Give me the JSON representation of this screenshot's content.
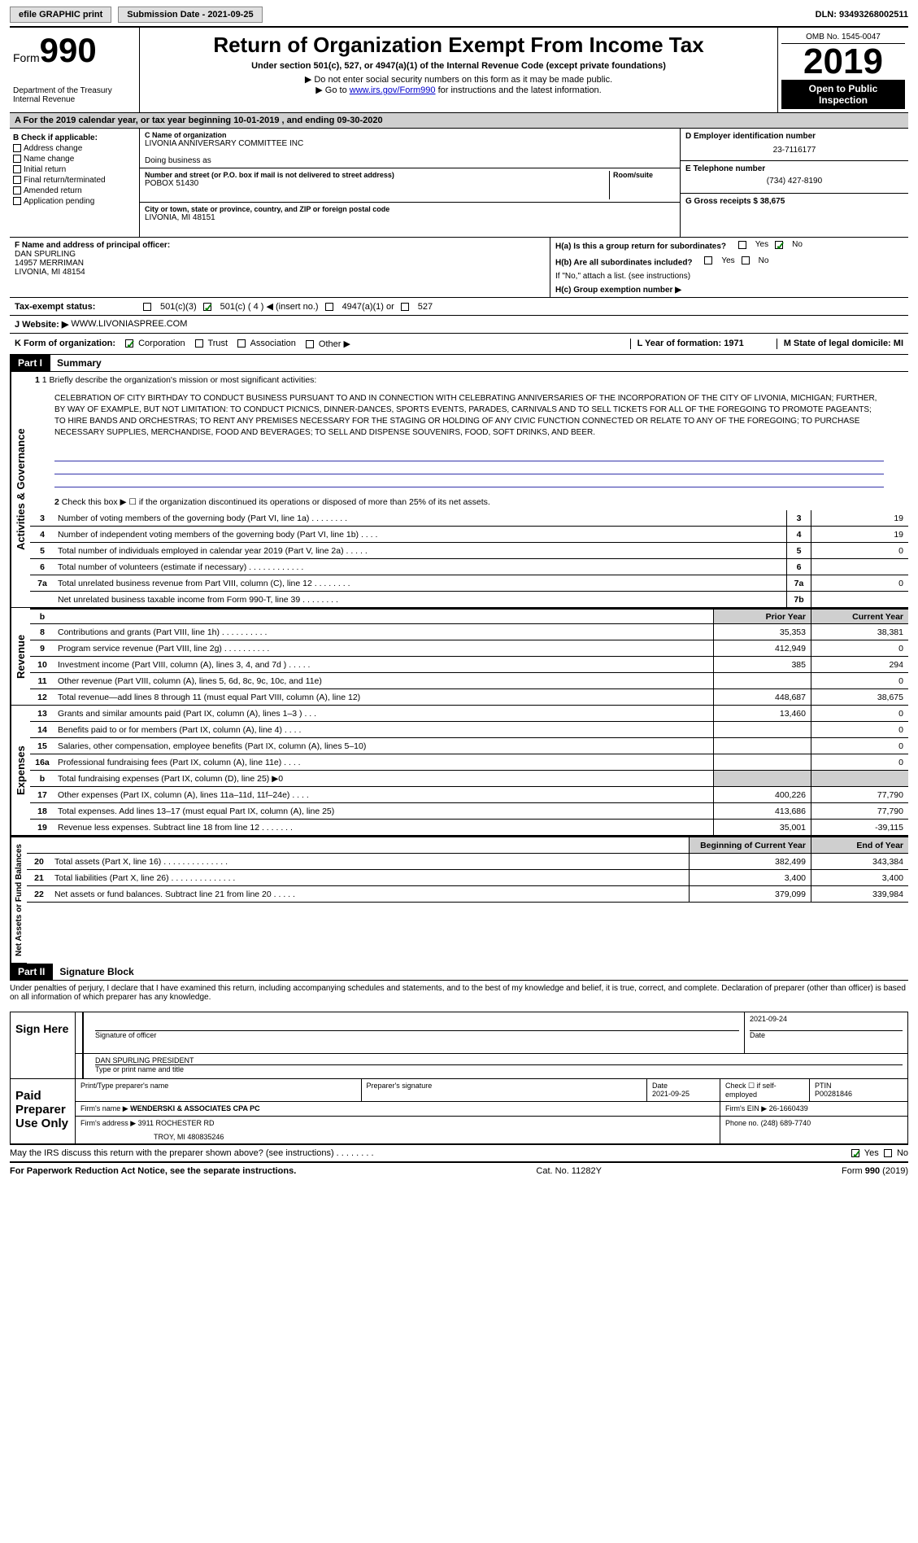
{
  "header": {
    "efile": "efile GRAPHIC print",
    "submission_label": "Submission Date - 2021-09-25",
    "dln": "DLN: 93493268002511"
  },
  "title_block": {
    "form_label": "Form",
    "form_number": "990",
    "main_title": "Return of Organization Exempt From Income Tax",
    "subtitle": "Under section 501(c), 527, or 4947(a)(1) of the Internal Revenue Code (except private foundations)",
    "instruction1": "▶ Do not enter social security numbers on this form as it may be made public.",
    "instruction2_prefix": "▶ Go to ",
    "instruction2_link": "www.irs.gov/Form990",
    "instruction2_suffix": " for instructions and the latest information.",
    "omb": "OMB No. 1545-0047",
    "year": "2019",
    "open_public": "Open to Public Inspection",
    "dept1": "Department of the Treasury",
    "dept2": "Internal Revenue"
  },
  "period": "A For the 2019 calendar year, or tax year beginning 10-01-2019    , and ending 09-30-2020",
  "section_b": {
    "label": "B Check if applicable:",
    "checks": [
      "Address change",
      "Name change",
      "Initial return",
      "Final return/terminated",
      "Amended return",
      "Application pending"
    ],
    "c_label": "C Name of organization",
    "org_name": "LIVONIA ANNIVERSARY COMMITTEE INC",
    "dba_label": "Doing business as",
    "street_label": "Number and street (or P.O. box if mail is not delivered to street address)",
    "room_label": "Room/suite",
    "street": "POBOX 51430",
    "city_label": "City or town, state or province, country, and ZIP or foreign postal code",
    "city": "LIVONIA, MI  48151",
    "d_label": "D Employer identification number",
    "ein": "23-7116177",
    "e_label": "E Telephone number",
    "phone": "(734) 427-8190",
    "g_label": "G Gross receipts $ 38,675"
  },
  "section_f": {
    "f_label": "F  Name and address of principal officer:",
    "name": "DAN SPURLING",
    "addr1": "14957 MERRIMAN",
    "addr2": "LIVONIA, MI  48154",
    "h_a": "H(a)  Is this a group return for subordinates?",
    "h_b": "H(b)  Are all subordinates included?",
    "h_note": "If \"No,\" attach a list. (see instructions)",
    "h_c": "H(c)  Group exemption number ▶",
    "yes": "Yes",
    "no": "No"
  },
  "tax_exempt": {
    "label": "Tax-exempt status:",
    "opt1": "501(c)(3)",
    "opt2": "501(c) ( 4 ) ◀ (insert no.)",
    "opt3": "4947(a)(1) or",
    "opt4": "527"
  },
  "website": {
    "label": "J   Website: ▶",
    "url": "WWW.LIVONIASPREE.COM"
  },
  "form_org": {
    "k_label": "K Form of organization:",
    "corp": "Corporation",
    "trust": "Trust",
    "assoc": "Association",
    "other": "Other ▶",
    "l_label": "L Year of formation: 1971",
    "m_label": "M State of legal domicile: MI"
  },
  "part1": {
    "label": "Part I",
    "title": "Summary",
    "line1_label": "1  Briefly describe the organization's mission or most significant activities:",
    "mission": "CELEBRATION OF CITY BIRTHDAY TO CONDUCT BUSINESS PURSUANT TO AND IN CONNECTION WITH CELEBRATING ANNIVERSARIES OF THE INCORPORATION OF THE CITY OF LIVONIA, MICHIGAN; FURTHER, BY WAY OF EXAMPLE, BUT NOT LIMITATION: TO CONDUCT PICNICS, DINNER-DANCES, SPORTS EVENTS, PARADES, CARNIVALS AND TO SELL TICKETS FOR ALL OF THE FOREGOING TO PROMOTE PAGEANTS; TO HIRE BANDS AND ORCHESTRAS; TO RENT ANY PREMISES NECESSARY FOR THE STAGING OR HOLDING OF ANY CIVIC FUNCTION CONNECTED OR RELATE TO ANY OF THE FOREGOING; TO PURCHASE NECESSARY SUPPLIES, MERCHANDISE, FOOD AND BEVERAGES; TO SELL AND DISPENSE SOUVENIRS, FOOD, SOFT DRINKS, AND BEER.",
    "line2": "Check this box ▶ ☐ if the organization discontinued its operations or disposed of more than 25% of its net assets.",
    "sidebar1": "Activities & Governance",
    "sidebar2": "Revenue",
    "sidebar3": "Expenses",
    "sidebar4": "Net Assets or Fund Balances",
    "prior_year": "Prior Year",
    "current_year": "Current Year",
    "beg_year": "Beginning of Current Year",
    "end_year": "End of Year",
    "lines_gov": [
      {
        "n": "3",
        "t": "Number of voting members of the governing body (Part VI, line 1a)  .    .    .    .    .    .    .    .",
        "box": "3",
        "v": "19"
      },
      {
        "n": "4",
        "t": "Number of independent voting members of the governing body (Part VI, line 1b)  .    .    .    .",
        "box": "4",
        "v": "19"
      },
      {
        "n": "5",
        "t": "Total number of individuals employed in calendar year 2019 (Part V, line 2a)  .    .    .    .    .",
        "box": "5",
        "v": "0"
      },
      {
        "n": "6",
        "t": "Total number of volunteers (estimate if necessary)  .    .    .    .    .    .    .    .    .    .    .    .",
        "box": "6",
        "v": ""
      },
      {
        "n": "7a",
        "t": "Total unrelated business revenue from Part VIII, column (C), line 12  .    .    .    .    .    .    .    .",
        "box": "7a",
        "v": "0"
      },
      {
        "n": "",
        "t": "Net unrelated business taxable income from Form 990-T, line 39  .    .    .    .    .    .    .    .",
        "box": "7b",
        "v": ""
      }
    ],
    "lines_rev": [
      {
        "n": "8",
        "t": "Contributions and grants (Part VIII, line 1h)  .    .    .    .    .    .    .    .    .    .",
        "p": "35,353",
        "c": "38,381"
      },
      {
        "n": "9",
        "t": "Program service revenue (Part VIII, line 2g)  .    .    .    .    .    .    .    .    .    .",
        "p": "412,949",
        "c": "0"
      },
      {
        "n": "10",
        "t": "Investment income (Part VIII, column (A), lines 3, 4, and 7d )  .    .    .    .    .",
        "p": "385",
        "c": "294"
      },
      {
        "n": "11",
        "t": "Other revenue (Part VIII, column (A), lines 5, 6d, 8c, 9c, 10c, and 11e)",
        "p": "",
        "c": "0"
      },
      {
        "n": "12",
        "t": "Total revenue—add lines 8 through 11 (must equal Part VIII, column (A), line 12)",
        "p": "448,687",
        "c": "38,675"
      }
    ],
    "lines_exp": [
      {
        "n": "13",
        "t": "Grants and similar amounts paid (Part IX, column (A), lines 1–3 )  .    .    .",
        "p": "13,460",
        "c": "0"
      },
      {
        "n": "14",
        "t": "Benefits paid to or for members (Part IX, column (A), line 4)  .    .    .    .",
        "p": "",
        "c": "0"
      },
      {
        "n": "15",
        "t": "Salaries, other compensation, employee benefits (Part IX, column (A), lines 5–10)",
        "p": "",
        "c": "0"
      },
      {
        "n": "16a",
        "t": "Professional fundraising fees (Part IX, column (A), line 11e)  .    .    .    .",
        "p": "",
        "c": "0"
      },
      {
        "n": "b",
        "t": "Total fundraising expenses (Part IX, column (D), line 25) ▶0",
        "p": "gray",
        "c": "gray"
      },
      {
        "n": "17",
        "t": "Other expenses (Part IX, column (A), lines 11a–11d, 11f–24e)  .    .    .    .",
        "p": "400,226",
        "c": "77,790"
      },
      {
        "n": "18",
        "t": "Total expenses. Add lines 13–17 (must equal Part IX, column (A), line 25)",
        "p": "413,686",
        "c": "77,790"
      },
      {
        "n": "19",
        "t": "Revenue less expenses. Subtract line 18 from line 12  .    .    .    .    .    .    .",
        "p": "35,001",
        "c": "-39,115"
      }
    ],
    "lines_net": [
      {
        "n": "20",
        "t": "Total assets (Part X, line 16)  .    .    .    .    .    .    .    .    .    .    .    .    .    .",
        "p": "382,499",
        "c": "343,384"
      },
      {
        "n": "21",
        "t": "Total liabilities (Part X, line 26)  .    .    .    .    .    .    .    .    .    .    .    .    .    .",
        "p": "3,400",
        "c": "3,400"
      },
      {
        "n": "22",
        "t": "Net assets or fund balances. Subtract line 21 from line 20  .    .    .    .    .",
        "p": "379,099",
        "c": "339,984"
      }
    ]
  },
  "part2": {
    "label": "Part II",
    "title": "Signature Block",
    "penalties": "Under penalties of perjury, I declare that I have examined this return, including accompanying schedules and statements, and to the best of my knowledge and belief, it is true, correct, and complete. Declaration of preparer (other than officer) is based on all information of which preparer has any knowledge.",
    "sign_here": "Sign Here",
    "sig_officer": "Signature of officer",
    "sig_date": "2021-09-24",
    "date_label": "Date",
    "officer_name": "DAN SPURLING  PRESIDENT",
    "type_print": "Type or print name and title",
    "paid_preparer": "Paid Preparer Use Only",
    "print_name_label": "Print/Type preparer's name",
    "prep_sig_label": "Preparer's signature",
    "prep_date_label": "Date",
    "prep_date": "2021-09-25",
    "check_self": "Check ☐ if self-employed",
    "ptin_label": "PTIN",
    "ptin": "P00281846",
    "firm_name_label": "Firm's name    ▶",
    "firm_name": "WENDERSKI & ASSOCIATES CPA PC",
    "firm_ein_label": "Firm's EIN ▶",
    "firm_ein": "26-1660439",
    "firm_addr_label": "Firm's address ▶",
    "firm_addr1": "3911 ROCHESTER RD",
    "firm_addr2": "TROY, MI  480835246",
    "firm_phone_label": "Phone no.",
    "firm_phone": "(248) 689-7740",
    "discuss": "May the IRS discuss this return with the preparer shown above? (see instructions)  .    .    .    .    .    .    .    .",
    "yes": "Yes",
    "no": "No"
  },
  "footer": {
    "paperwork": "For Paperwork Reduction Act Notice, see the separate instructions.",
    "cat": "Cat. No. 11282Y",
    "form": "Form 990 (2019)"
  },
  "colors": {
    "header_gray": "#cfcfcf",
    "link_blue": "#0000cc",
    "check_green": "#008000"
  }
}
